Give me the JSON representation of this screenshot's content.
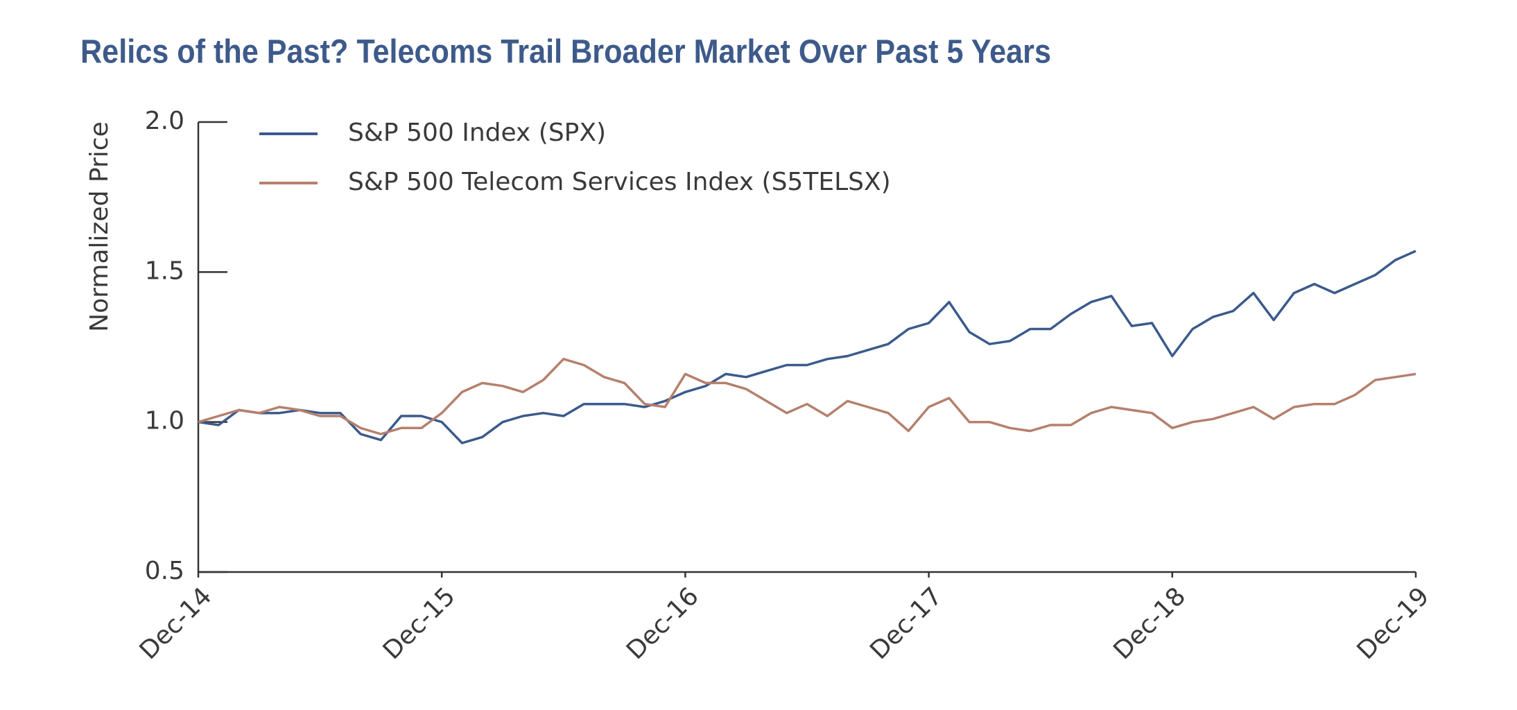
{
  "chart_data": {
    "type": "line",
    "title": "Relics of the Past? Telecoms Trail Broader Market Over Past 5 Years",
    "y_label": "Normalized Price",
    "x": [
      "2014-12",
      "2015-01",
      "2015-02",
      "2015-03",
      "2015-04",
      "2015-05",
      "2015-06",
      "2015-07",
      "2015-08",
      "2015-09",
      "2015-10",
      "2015-11",
      "2015-12",
      "2016-01",
      "2016-02",
      "2016-03",
      "2016-04",
      "2016-05",
      "2016-06",
      "2016-07",
      "2016-08",
      "2016-09",
      "2016-10",
      "2016-11",
      "2016-12",
      "2017-01",
      "2017-02",
      "2017-03",
      "2017-04",
      "2017-05",
      "2017-06",
      "2017-07",
      "2017-08",
      "2017-09",
      "2017-10",
      "2017-11",
      "2017-12",
      "2018-01",
      "2018-02",
      "2018-03",
      "2018-04",
      "2018-05",
      "2018-06",
      "2018-07",
      "2018-08",
      "2018-09",
      "2018-10",
      "2018-11",
      "2018-12",
      "2019-01",
      "2019-02",
      "2019-03",
      "2019-04",
      "2019-05",
      "2019-06",
      "2019-07",
      "2019-08",
      "2019-09",
      "2019-10",
      "2019-11",
      "2019-12"
    ],
    "series": [
      {
        "name": "S&P 500 Index (SPX)",
        "color": "#3b5a8c",
        "values": [
          1.0,
          0.99,
          1.04,
          1.03,
          1.03,
          1.04,
          1.03,
          1.03,
          0.96,
          0.94,
          1.02,
          1.02,
          1.0,
          0.93,
          0.95,
          1.0,
          1.02,
          1.03,
          1.02,
          1.06,
          1.06,
          1.06,
          1.05,
          1.07,
          1.1,
          1.12,
          1.16,
          1.15,
          1.17,
          1.19,
          1.19,
          1.21,
          1.22,
          1.24,
          1.26,
          1.31,
          1.33,
          1.4,
          1.3,
          1.26,
          1.27,
          1.31,
          1.31,
          1.36,
          1.4,
          1.42,
          1.32,
          1.33,
          1.22,
          1.31,
          1.35,
          1.37,
          1.43,
          1.34,
          1.43,
          1.46,
          1.43,
          1.46,
          1.49,
          1.54,
          1.57
        ]
      },
      {
        "name": "S&P 500 Telecom Services Index (S5TELSX)",
        "color": "#b5806d",
        "values": [
          1.0,
          1.02,
          1.04,
          1.03,
          1.05,
          1.04,
          1.02,
          1.02,
          0.98,
          0.96,
          0.98,
          0.98,
          1.03,
          1.1,
          1.13,
          1.12,
          1.1,
          1.14,
          1.21,
          1.19,
          1.15,
          1.13,
          1.06,
          1.05,
          1.16,
          1.13,
          1.13,
          1.11,
          1.07,
          1.03,
          1.06,
          1.02,
          1.07,
          1.05,
          1.03,
          0.97,
          1.05,
          1.08,
          1.0,
          1.0,
          0.98,
          0.97,
          0.99,
          0.99,
          1.03,
          1.05,
          1.04,
          1.03,
          0.98,
          1.0,
          1.01,
          1.03,
          1.05,
          1.01,
          1.05,
          1.06,
          1.06,
          1.09,
          1.14,
          1.15,
          1.16
        ]
      }
    ],
    "xlim": [
      "2014-12",
      "2019-12"
    ],
    "xticks": [
      {
        "value": "2014-12",
        "label": "Dec-14"
      },
      {
        "value": "2015-12",
        "label": "Dec-15"
      },
      {
        "value": "2016-12",
        "label": "Dec-16"
      },
      {
        "value": "2017-12",
        "label": "Dec-17"
      },
      {
        "value": "2018-12",
        "label": "Dec-18"
      },
      {
        "value": "2019-12",
        "label": "Dec-19"
      }
    ],
    "ylim": [
      0.5,
      2.0
    ],
    "yticks": [
      {
        "value": 0.5,
        "label": "0.5"
      },
      {
        "value": 1.0,
        "label": "1.0"
      },
      {
        "value": 1.5,
        "label": "1.5"
      },
      {
        "value": 2.0,
        "label": "2.0"
      }
    ],
    "legend": "top-left"
  }
}
